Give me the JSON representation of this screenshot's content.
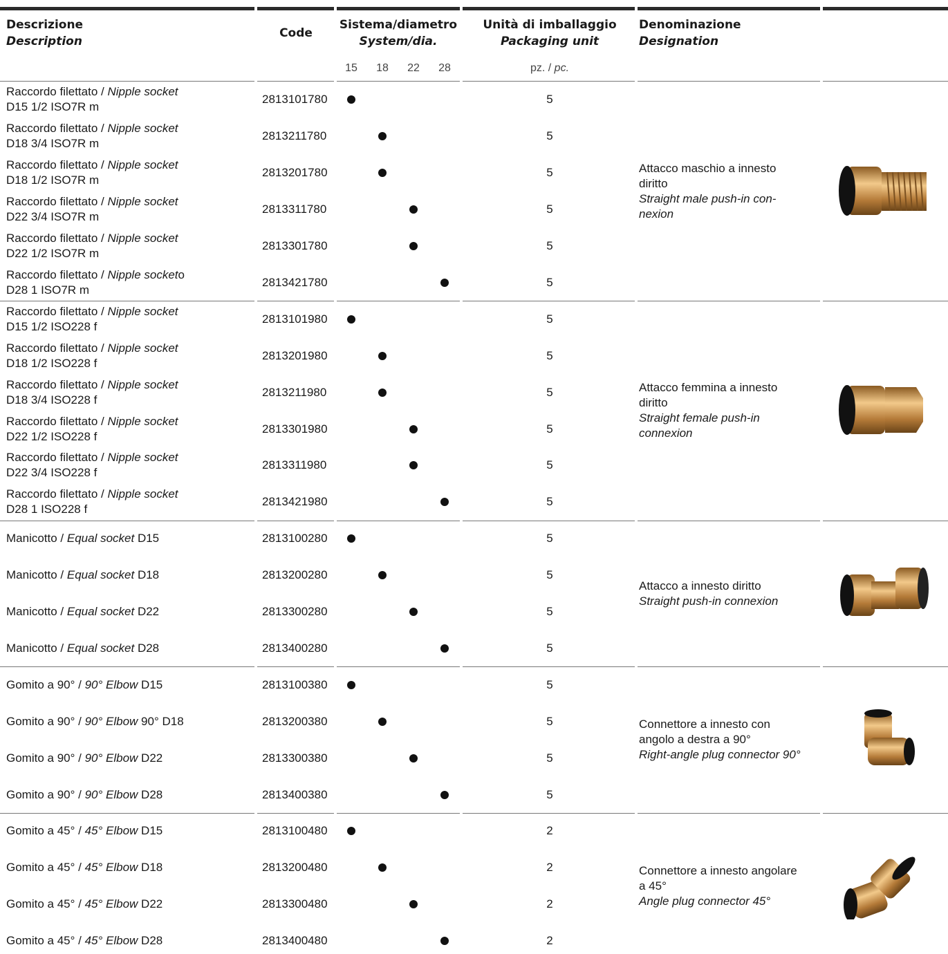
{
  "header": {
    "desc_it": "Descrizione",
    "desc_en": "Description",
    "code": "Code",
    "system_it": "Sistema/diametro",
    "system_en": "System/dia.",
    "pack_it": "Unità di imballaggio",
    "pack_en": "Packaging unit",
    "denom_it": "Denominazione",
    "denom_en": "Designation",
    "diameters": [
      15,
      18,
      22,
      28
    ],
    "unit_it": "pz.",
    "unit_sep": " / ",
    "unit_en": "pc."
  },
  "groups": [
    {
      "designation_it": [
        "Attacco maschio a innesto",
        "diritto"
      ],
      "designation_en": [
        "Straight male push-in con-",
        "nexion"
      ],
      "rows": [
        {
          "it": "Raccordo filettato / ",
          "en": "Nipple socket",
          "line2": "D15 1/2 ISO7R m",
          "code": "2813101780",
          "system": 15,
          "pack": 5
        },
        {
          "it": "Raccordo filettato / ",
          "en": "Nipple socket",
          "line2": "D18 3/4 ISO7R m",
          "code": "2813211780",
          "system": 18,
          "pack": 5
        },
        {
          "it": "Raccordo filettato / ",
          "en": "Nipple socket",
          "line2": "D18 1/2 ISO7R m",
          "code": "2813201780",
          "system": 18,
          "pack": 5
        },
        {
          "it": "Raccordo filettato / ",
          "en": "Nipple socket",
          "line2": "D22 3/4 ISO7R m",
          "code": "2813311780",
          "system": 22,
          "pack": 5
        },
        {
          "it": "Raccordo filettato / ",
          "en": "Nipple socket",
          "line2": "D22 1/2 ISO7R m",
          "code": "2813301780",
          "system": 22,
          "pack": 5
        },
        {
          "it": "Raccordo filettato / ",
          "en": "Nipple socket",
          "tail": "o",
          "line2": "D28 1 ISO7R m",
          "code": "2813421780",
          "system": 28,
          "pack": 5
        }
      ]
    },
    {
      "designation_it": [
        "Attacco femmina a innesto",
        "diritto"
      ],
      "designation_en": [
        "Straight female push-in",
        "connexion"
      ],
      "rows": [
        {
          "it": "Raccordo filettato / ",
          "en": "Nipple socket",
          "line2": "D15 1/2 ISO228 f",
          "code": "2813101980",
          "system": 15,
          "pack": 5
        },
        {
          "it": "Raccordo filettato / ",
          "en": "Nipple socket",
          "line2": "D18 1/2 ISO228 f",
          "code": "2813201980",
          "system": 18,
          "pack": 5
        },
        {
          "it": "Raccordo filettato / ",
          "en": "Nipple socket",
          "line2": "D18 3/4 ISO228 f",
          "code": "2813211980",
          "system": 18,
          "pack": 5
        },
        {
          "it": "Raccordo filettato / ",
          "en": "Nipple socket",
          "line2": "D22 1/2 ISO228 f",
          "code": "2813301980",
          "system": 22,
          "pack": 5
        },
        {
          "it": "Raccordo filettato / ",
          "en": "Nipple socket",
          "line2": "D22 3/4 ISO228 f",
          "code": "2813311980",
          "system": 22,
          "pack": 5
        },
        {
          "it": "Raccordo filettato / ",
          "en": "Nipple socket",
          "line2": "D28 1 ISO228 f",
          "code": "2813421980",
          "system": 28,
          "pack": 5
        }
      ]
    },
    {
      "designation_it": [
        "Attacco a innesto diritto"
      ],
      "designation_en": [
        "Straight push-in connexion"
      ],
      "rows": [
        {
          "it": "Manicotto / ",
          "en": "Equal socket",
          "tail": " D15",
          "code": "2813100280",
          "system": 15,
          "pack": 5
        },
        {
          "it": "Manicotto / ",
          "en": "Equal socket",
          "tail": " D18",
          "code": "2813200280",
          "system": 18,
          "pack": 5
        },
        {
          "it": "Manicotto / ",
          "en": "Equal socket",
          "tail": " D22",
          "code": "2813300280",
          "system": 22,
          "pack": 5
        },
        {
          "it": "Manicotto / ",
          "en": "Equal socket",
          "tail": " D28",
          "code": "2813400280",
          "system": 28,
          "pack": 5
        }
      ]
    },
    {
      "designation_it": [
        "Connettore a innesto con",
        "angolo a destra a 90°"
      ],
      "designation_en": [
        "Right-angle plug connector 90°"
      ],
      "rows": [
        {
          "it": "Gomito a 90° / ",
          "en": "90° Elbow",
          "tail": " D15",
          "code": "2813100380",
          "system": 15,
          "pack": 5
        },
        {
          "it": "Gomito a 90° / ",
          "en": "90° Elbow",
          "tail": " 90° D18",
          "code": "2813200380",
          "system": 18,
          "pack": 5
        },
        {
          "it": "Gomito a 90° / ",
          "en": "90° Elbow",
          "tail": " D22",
          "code": "2813300380",
          "system": 22,
          "pack": 5
        },
        {
          "it": "Gomito a 90° / ",
          "en": "90° Elbow",
          "tail": " D28",
          "code": "2813400380",
          "system": 28,
          "pack": 5
        }
      ]
    },
    {
      "designation_it": [
        "Connettore a innesto angolare",
        "a 45°"
      ],
      "designation_en": [
        "Angle plug connector 45°"
      ],
      "rows": [
        {
          "it": "Gomito a 45° / ",
          "en": "45° Elbow",
          "tail": " D15",
          "code": "2813100480",
          "system": 15,
          "pack": 2
        },
        {
          "it": "Gomito a 45° / ",
          "en": "45° Elbow",
          "tail": " D18",
          "code": "2813200480",
          "system": 18,
          "pack": 2
        },
        {
          "it": "Gomito a 45° / ",
          "en": "45° Elbow",
          "tail": " D22",
          "code": "2813300480",
          "system": 22,
          "pack": 2
        },
        {
          "it": "Gomito a 45° / ",
          "en": "45° Elbow",
          "tail": " D28",
          "code": "2813400480",
          "system": 28,
          "pack": 2
        }
      ]
    }
  ]
}
